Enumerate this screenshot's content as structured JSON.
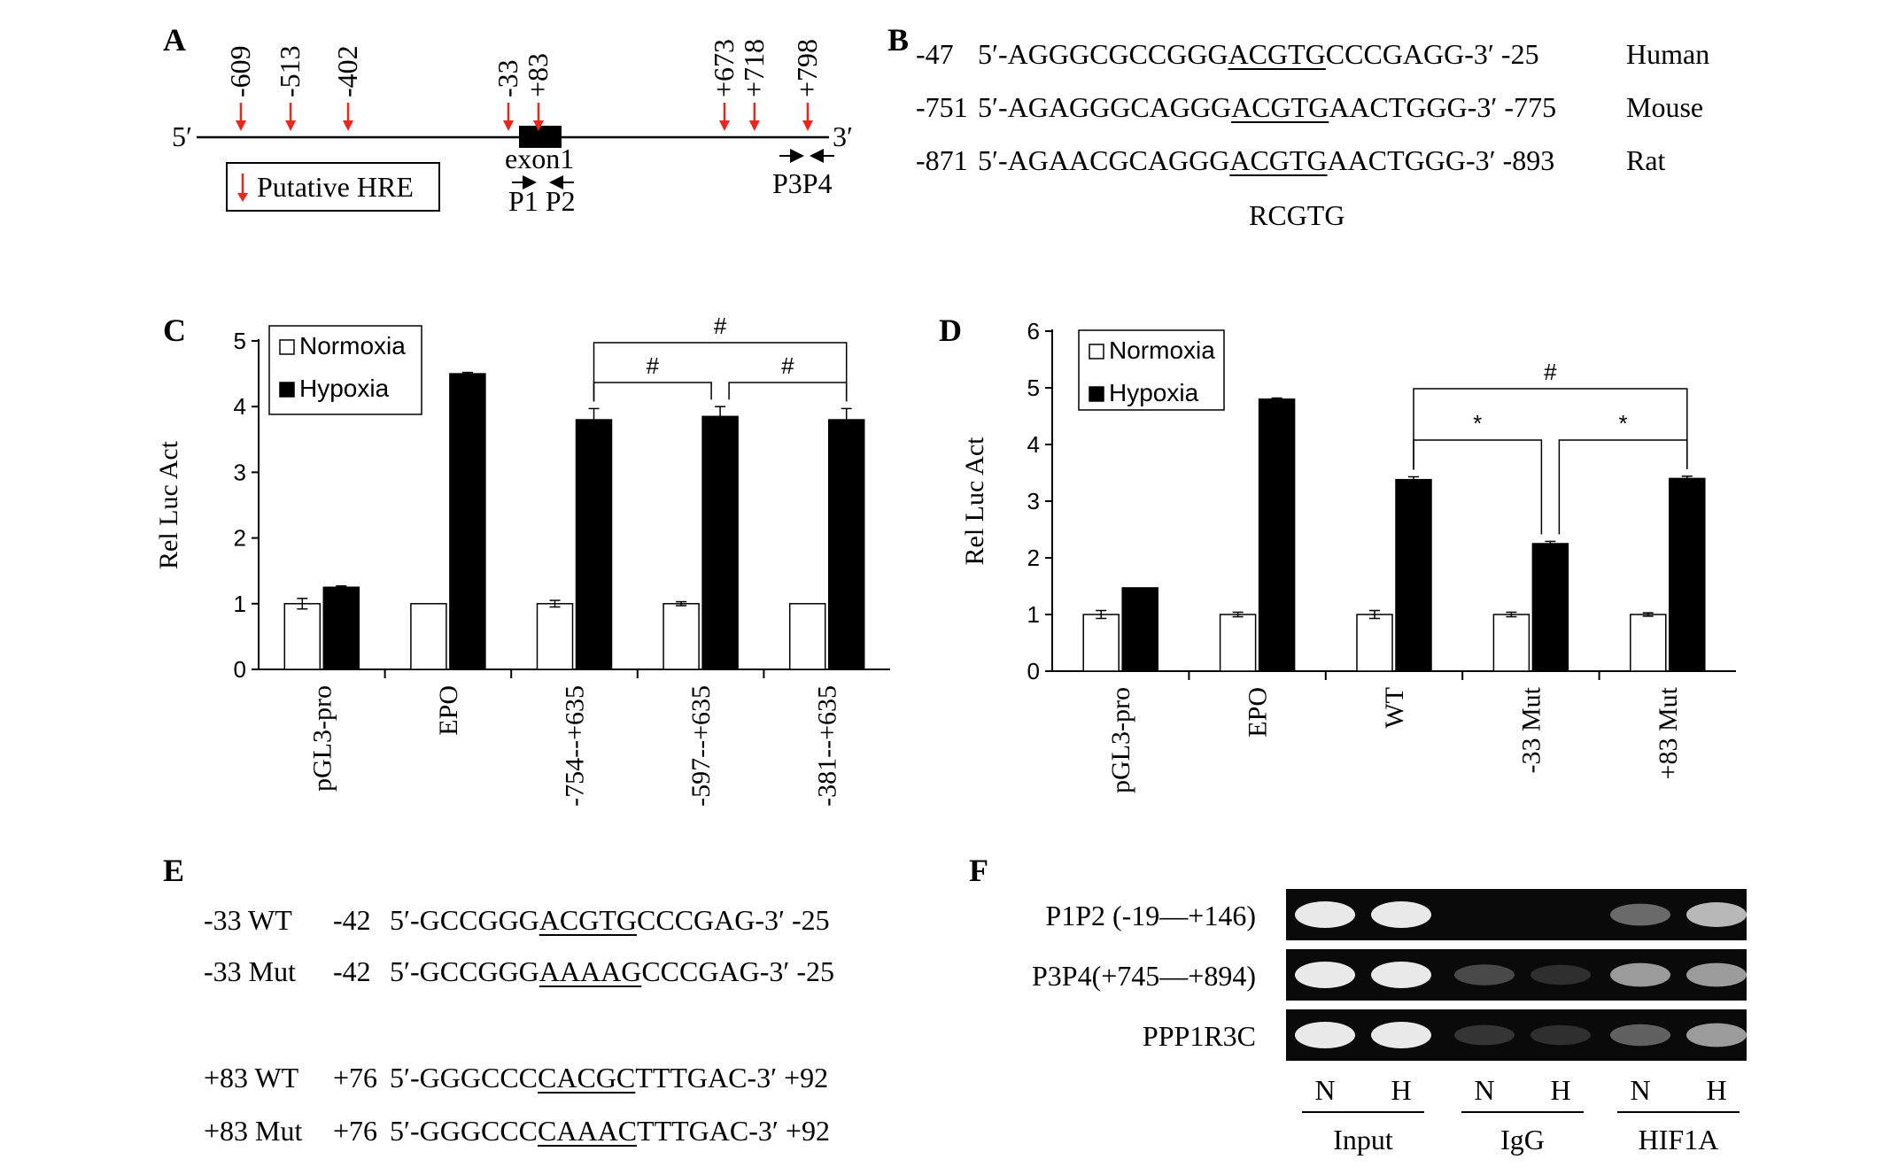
{
  "panels": {
    "A": {
      "label": "A",
      "hre_positions": [
        {
          "label": "-609",
          "bp": -609
        },
        {
          "label": "-513",
          "bp": -513
        },
        {
          "label": "-402",
          "bp": -402
        },
        {
          "label": "-33",
          "bp": -33
        },
        {
          "label": "+83",
          "bp": 83
        },
        {
          "label": "+673",
          "bp": 673
        },
        {
          "label": "+718",
          "bp": 718
        },
        {
          "label": "+798",
          "bp": 798
        }
      ],
      "five_prime": "5′",
      "three_prime": "3′",
      "exon_label": "exon1",
      "primers_p1p2": "P1 P2",
      "primers_p3p4": "P3P4",
      "legend_label": "Putative HRE",
      "hre_color": "#e8281e"
    },
    "B": {
      "label": "B",
      "rows": [
        {
          "start": "-47",
          "pre": "5′-AGGGCGCCGGG",
          "core": "ACGTG",
          "post": "CCCGAGG-3′",
          "end": "-25",
          "species": "Human"
        },
        {
          "start": "-751",
          "pre": "5′-AGAGGGCAGGG",
          "core": "ACGTG",
          "post": "AACTGGG-3′",
          "end": "-775",
          "species": "Mouse"
        },
        {
          "start": "-871",
          "pre": "5′-AGAACGCAGGG",
          "core": "ACGTG",
          "post": "AACTGGG-3′",
          "end": "-893",
          "species": "Rat"
        }
      ],
      "consensus": "RCGTG"
    },
    "E": {
      "label": "E",
      "rows": [
        {
          "name": "-33 WT",
          "start": "-42",
          "pre": "5′-GCCGGG",
          "core": "ACGTG",
          "post": "CCCGAG-3′",
          "end": "-25"
        },
        {
          "name": "-33 Mut",
          "start": "-42",
          "pre": "5′-GCCGGG",
          "core": "AAAAG",
          "post": "CCCGAG-3′",
          "end": "-25"
        },
        {
          "name": "+83 WT",
          "start": "+76",
          "pre": "5′-GGGCCC",
          "core": "CACGC",
          "post": "TTTGAC-3′",
          "end": "+92"
        },
        {
          "name": "+83 Mut",
          "start": "+76",
          "pre": "5′-GGGCCC",
          "core": "CAAAC",
          "post": "TTTGAC-3′",
          "end": "+92"
        }
      ]
    },
    "F": {
      "label": "F",
      "rows": [
        "P1P2 (-19—+146)",
        "P3P4(+745—+894)",
        "PPP1R3C"
      ],
      "lanes": [
        "N",
        "H",
        "N",
        "H",
        "N",
        "H"
      ],
      "groups": [
        "Input",
        "IgG",
        "HIF1A"
      ],
      "band_intensity": [
        [
          1.0,
          1.0,
          0.0,
          0.0,
          0.35,
          0.75
        ],
        [
          1.0,
          1.0,
          0.18,
          0.05,
          0.6,
          0.6
        ],
        [
          1.0,
          1.0,
          0.08,
          0.05,
          0.3,
          0.6
        ]
      ]
    }
  },
  "chart_data": [
    {
      "panel": "C",
      "type": "bar",
      "ylabel": "Rel Luc Act",
      "ylim": [
        0,
        5
      ],
      "yticks": [
        "0",
        "1",
        "2",
        "3",
        "4",
        "5"
      ],
      "categories": [
        "pGL3-pro",
        "EPO",
        "-754--+635",
        "-597--+635",
        "-381--+635"
      ],
      "series": [
        {
          "name": "Normoxia",
          "values": [
            1.0,
            1.0,
            1.0,
            1.0,
            1.0
          ],
          "errors": [
            0.08,
            0.0,
            0.05,
            0.03,
            0.0
          ],
          "color": "#ffffff"
        },
        {
          "name": "Hypoxia",
          "values": [
            1.25,
            4.5,
            3.8,
            3.85,
            3.8
          ],
          "errors": [
            0.02,
            0.02,
            0.17,
            0.15,
            0.17
          ],
          "color": "#000000"
        }
      ],
      "legend": "top-left",
      "brackets": [
        {
          "from": 2,
          "to": 4,
          "label": "#"
        },
        {
          "from": 2,
          "to": 3,
          "label": "#"
        },
        {
          "from": 3,
          "to": 4,
          "label": "#"
        }
      ]
    },
    {
      "panel": "D",
      "type": "bar",
      "ylabel": "Rel Luc Act",
      "ylim": [
        0,
        6
      ],
      "yticks": [
        "0",
        "1",
        "2",
        "3",
        "4",
        "5",
        "6"
      ],
      "categories": [
        "pGL3-pro",
        "EPO",
        "WT",
        "-33 Mut",
        "+83 Mut"
      ],
      "series": [
        {
          "name": "Normoxia",
          "values": [
            1.0,
            1.0,
            1.0,
            1.0,
            1.0
          ],
          "errors": [
            0.07,
            0.04,
            0.07,
            0.04,
            0.03
          ],
          "color": "#ffffff"
        },
        {
          "name": "Hypoxia",
          "values": [
            1.47,
            4.8,
            3.38,
            2.25,
            3.4
          ],
          "errors": [
            0.0,
            0.02,
            0.05,
            0.04,
            0.04
          ],
          "color": "#000000"
        }
      ],
      "legend": "top-left",
      "brackets": [
        {
          "from": 2,
          "to": 4,
          "label": "#"
        },
        {
          "from": 2,
          "to": 3,
          "label": "*"
        },
        {
          "from": 3,
          "to": 4,
          "label": "*"
        }
      ]
    }
  ]
}
